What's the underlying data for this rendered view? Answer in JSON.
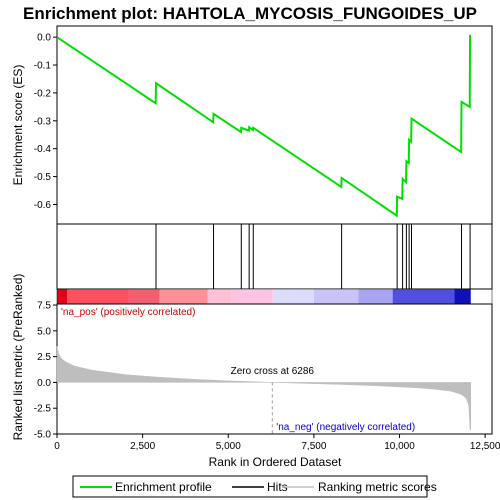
{
  "chart_data": {
    "type": "line",
    "title": "Enrichment plot: HAHTOLA_MYCOSIS_FUNGOIDES_UP",
    "xlabel": "Rank in Ordered Dataset",
    "xlim": [
      0,
      12700
    ],
    "x_ticks": [
      "0",
      "2,500",
      "5,000",
      "7,500",
      "10,000",
      "12,500"
    ],
    "x_tick_values": [
      0,
      2500,
      5000,
      7500,
      10000,
      12500
    ],
    "colors": {
      "enrichment": "#00e000",
      "hits": "#000000",
      "metric": "#bebebe",
      "pos_annot": "#cc0000",
      "neg_annot": "#0000cc",
      "zero_line": "#bebebe"
    },
    "enrichment_panel": {
      "ylabel": "Enrichment score (ES)",
      "ylim": [
        -0.67,
        0.04
      ],
      "y_ticks": [
        "0.0",
        "-0.1",
        "-0.2",
        "-0.3",
        "-0.4",
        "-0.5",
        "-0.6"
      ],
      "y_tick_values": [
        0.0,
        -0.1,
        -0.2,
        -0.3,
        -0.4,
        -0.5,
        -0.6
      ],
      "series": [
        {
          "name": "Enrichment profile",
          "x": [
            0,
            2880,
            2890,
            4560,
            4570,
            5370,
            5380,
            5600,
            5610,
            5720,
            5730,
            8300,
            8310,
            9920,
            9930,
            10080,
            10090,
            10190,
            10200,
            10270,
            10280,
            10340,
            10350,
            11800,
            11810,
            12050,
            12060,
            12080
          ],
          "y": [
            0.0,
            -0.237,
            -0.165,
            -0.305,
            -0.275,
            -0.34,
            -0.325,
            -0.335,
            -0.323,
            -0.333,
            -0.325,
            -0.537,
            -0.505,
            -0.64,
            -0.572,
            -0.58,
            -0.508,
            -0.52,
            -0.445,
            -0.452,
            -0.368,
            -0.375,
            -0.292,
            -0.412,
            -0.232,
            -0.25,
            0.005,
            0.005
          ]
        }
      ]
    },
    "hits": {
      "name": "Hits",
      "x": [
        2890,
        4570,
        5380,
        5610,
        5730,
        8310,
        9930,
        10090,
        10200,
        10280,
        10350,
        11810,
        12060
      ]
    },
    "color_bar": {
      "segments": [
        {
          "start": 0,
          "end": 300,
          "color": "#e0001a"
        },
        {
          "start": 300,
          "end": 2100,
          "color": "#ff5060"
        },
        {
          "start": 2100,
          "end": 3000,
          "color": "#f06070"
        },
        {
          "start": 3000,
          "end": 4400,
          "color": "#ff9098"
        },
        {
          "start": 4400,
          "end": 5100,
          "color": "#ffc0d8"
        },
        {
          "start": 5100,
          "end": 6300,
          "color": "#ffc4e4"
        },
        {
          "start": 6300,
          "end": 7500,
          "color": "#dcdcfc"
        },
        {
          "start": 7500,
          "end": 8800,
          "color": "#c8c4f8"
        },
        {
          "start": 8800,
          "end": 9800,
          "color": "#a8a4f0"
        },
        {
          "start": 9800,
          "end": 11600,
          "color": "#5050e0"
        },
        {
          "start": 11600,
          "end": 12080,
          "color": "#1010b8"
        }
      ]
    },
    "metric_panel": {
      "ylabel": "Ranked list metric (PreRanked)",
      "ylim": [
        -5.0,
        7.6
      ],
      "y_ticks": [
        "7.5",
        "5.0",
        "2.5",
        "0.0",
        "-2.5",
        "-5.0"
      ],
      "y_tick_values": [
        7.5,
        5.0,
        2.5,
        0.0,
        -2.5,
        -5.0
      ],
      "series": [
        {
          "name": "Ranking metric scores",
          "x": [
            0,
            20,
            60,
            120,
            250,
            500,
            1000,
            2000,
            3000,
            4000,
            5000,
            6286,
            7500,
            8500,
            9500,
            10500,
            11000,
            11500,
            11800,
            11950,
            12020,
            12060,
            12080
          ],
          "y": [
            3.5,
            3.1,
            2.7,
            2.35,
            2.0,
            1.6,
            1.2,
            0.75,
            0.5,
            0.3,
            0.15,
            0.0,
            -0.12,
            -0.22,
            -0.35,
            -0.52,
            -0.65,
            -0.85,
            -1.15,
            -1.55,
            -2.2,
            -4.6,
            -4.6
          ]
        }
      ],
      "annotations": {
        "pos": "'na_pos' (positively correlated)",
        "neg": "'na_neg' (negatively correlated)",
        "zero": "Zero cross at 6286"
      },
      "zero_cross": 6286
    },
    "legend": {
      "items": [
        {
          "label": "Enrichment profile",
          "color": "#00e000"
        },
        {
          "label": "Hits",
          "color": "#000000"
        },
        {
          "label": "Ranking metric scores",
          "color": "#bebebe"
        }
      ]
    }
  }
}
